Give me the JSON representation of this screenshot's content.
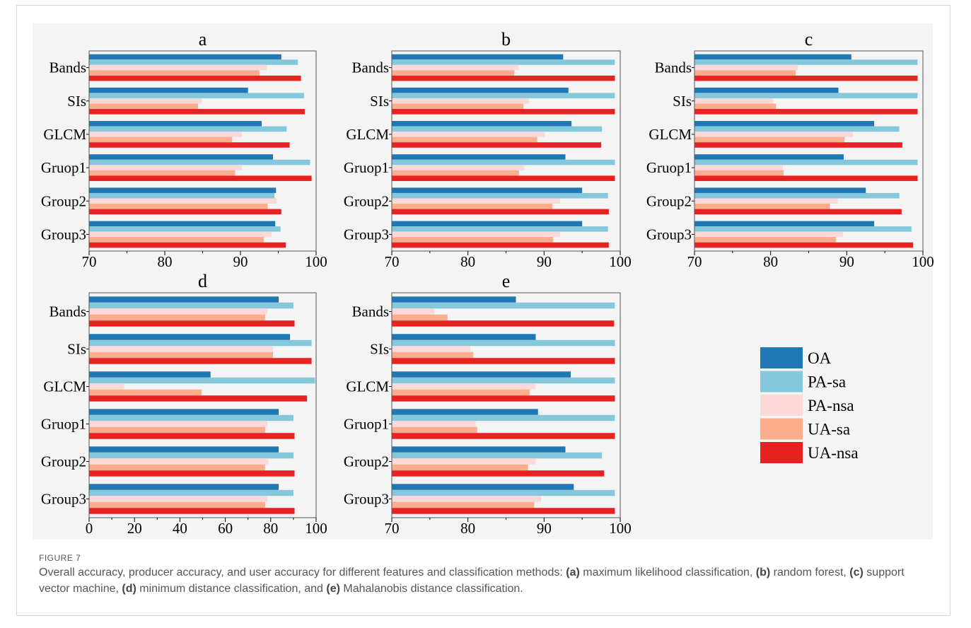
{
  "colors": {
    "OA": "#1f77b4",
    "PA-sa": "#85c8dc",
    "PA-nsa": "#fcd9d9",
    "UA-sa": "#fbad8d",
    "UA-nsa": "#e82121"
  },
  "legend": [
    "OA",
    "PA-sa",
    "PA-nsa",
    "UA-sa",
    "UA-nsa"
  ],
  "figure_label": "FIGURE 7",
  "caption": {
    "intro": "Overall accuracy, producer accuracy, and user accuracy for different features and classification methods: ",
    "a_tag": "(a)",
    "a_text": " maximum likelihood classification, ",
    "b_tag": "(b)",
    "b_text": " random forest, ",
    "c_tag": "(c)",
    "c_text": " support vector machine, ",
    "d_tag": "(d)",
    "d_text": " minimum distance classification, and ",
    "e_tag": "(e)",
    "e_text": " Mahalanobis distance classification."
  },
  "chart_data": [
    {
      "title": "a",
      "type": "bar",
      "orientation": "horizontal",
      "categories": [
        "Bands",
        "SIs",
        "GLCM",
        "Gruop1",
        "Group2",
        "Group3"
      ],
      "xlim": [
        70,
        100
      ],
      "xticks": [
        70,
        80,
        90,
        100
      ],
      "series": [
        {
          "name": "OA",
          "values": [
            95.4,
            91.0,
            92.8,
            94.3,
            94.7,
            94.6
          ]
        },
        {
          "name": "PA-sa",
          "values": [
            97.6,
            98.4,
            96.1,
            99.2,
            94.5,
            95.3
          ]
        },
        {
          "name": "PA-nsa",
          "values": [
            93.5,
            84.9,
            90.2,
            90.2,
            94.8,
            94.1
          ]
        },
        {
          "name": "UA-sa",
          "values": [
            92.5,
            84.4,
            88.9,
            89.3,
            93.6,
            93.1
          ]
        },
        {
          "name": "UA-nsa",
          "values": [
            98.0,
            98.5,
            96.5,
            99.4,
            95.4,
            96.0
          ]
        }
      ]
    },
    {
      "title": "b",
      "type": "bar",
      "orientation": "horizontal",
      "categories": [
        "Bands",
        "SIs",
        "GLCM",
        "Gruop1",
        "Group2",
        "Group3"
      ],
      "xlim": [
        70,
        100
      ],
      "xticks": [
        70,
        80,
        90,
        100
      ],
      "series": [
        {
          "name": "OA",
          "values": [
            92.5,
            93.2,
            93.6,
            92.8,
            95.0,
            95.0
          ]
        },
        {
          "name": "PA-sa",
          "values": [
            99.3,
            99.3,
            97.6,
            99.3,
            98.4,
            98.4
          ]
        },
        {
          "name": "PA-nsa",
          "values": [
            86.6,
            88.0,
            90.1,
            87.4,
            92.1,
            92.1
          ]
        },
        {
          "name": "UA-sa",
          "values": [
            86.1,
            87.3,
            89.1,
            86.7,
            91.1,
            91.2
          ]
        },
        {
          "name": "UA-nsa",
          "values": [
            99.3,
            99.3,
            97.5,
            99.3,
            98.5,
            98.5
          ]
        }
      ]
    },
    {
      "title": "c",
      "type": "bar",
      "orientation": "horizontal",
      "categories": [
        "Bands",
        "SIs",
        "GLCM",
        "Gruop1",
        "Group2",
        "Group3"
      ],
      "xlim": [
        70,
        100
      ],
      "xticks": [
        70,
        80,
        90,
        100
      ],
      "series": [
        {
          "name": "OA",
          "values": [
            90.6,
            88.9,
            93.6,
            89.6,
            92.5,
            93.6
          ]
        },
        {
          "name": "PA-sa",
          "values": [
            99.3,
            99.3,
            96.9,
            99.3,
            96.9,
            98.5
          ]
        },
        {
          "name": "PA-nsa",
          "values": [
            83.6,
            80.3,
            90.8,
            81.6,
            88.8,
            89.5
          ]
        },
        {
          "name": "UA-sa",
          "values": [
            83.3,
            80.7,
            89.7,
            81.7,
            87.8,
            88.6
          ]
        },
        {
          "name": "UA-nsa",
          "values": [
            99.3,
            99.3,
            97.3,
            99.3,
            97.2,
            98.7
          ]
        }
      ]
    },
    {
      "title": "d",
      "type": "bar",
      "orientation": "horizontal",
      "categories": [
        "Bands",
        "SIs",
        "GLCM",
        "Gruop1",
        "Group2",
        "Group3"
      ],
      "xlim": [
        0,
        100
      ],
      "xticks": [
        0,
        20,
        40,
        60,
        80,
        100
      ],
      "series": [
        {
          "name": "OA",
          "values": [
            83.5,
            88.5,
            53.5,
            83.5,
            83.5,
            83.5
          ]
        },
        {
          "name": "PA-sa",
          "values": [
            90.0,
            98.0,
            99.5,
            90.0,
            90.0,
            90.0
          ]
        },
        {
          "name": "PA-nsa",
          "values": [
            78.5,
            81.0,
            15.5,
            78.5,
            79.0,
            78.5
          ]
        },
        {
          "name": "UA-sa",
          "values": [
            77.5,
            81.0,
            49.5,
            77.5,
            77.5,
            77.5
          ]
        },
        {
          "name": "UA-nsa",
          "values": [
            90.5,
            98.0,
            96.0,
            90.5,
            90.5,
            90.5
          ]
        }
      ]
    },
    {
      "title": "e",
      "type": "bar",
      "orientation": "horizontal",
      "categories": [
        "Bands",
        "SIs",
        "GLCM",
        "Gruop1",
        "Group2",
        "Group3"
      ],
      "xlim": [
        70,
        100
      ],
      "xticks": [
        70,
        80,
        90,
        100
      ],
      "series": [
        {
          "name": "OA",
          "values": [
            86.3,
            88.9,
            93.5,
            89.2,
            92.8,
            93.9
          ]
        },
        {
          "name": "PA-sa",
          "values": [
            99.3,
            99.3,
            99.3,
            99.3,
            97.6,
            99.3
          ]
        },
        {
          "name": "PA-nsa",
          "values": [
            75.6,
            80.3,
            88.9,
            81.0,
            88.9,
            89.6
          ]
        },
        {
          "name": "UA-sa",
          "values": [
            77.3,
            80.7,
            88.1,
            81.2,
            87.9,
            88.7
          ]
        },
        {
          "name": "UA-nsa",
          "values": [
            99.2,
            99.3,
            99.3,
            99.3,
            97.9,
            99.3
          ]
        }
      ]
    }
  ]
}
